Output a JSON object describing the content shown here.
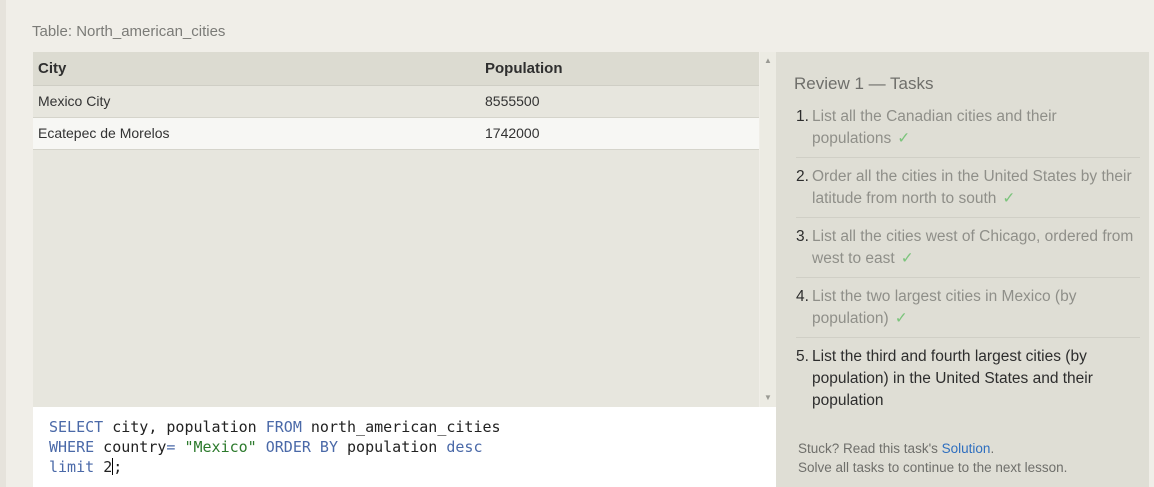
{
  "table": {
    "caption": "Table: North_american_cities",
    "columns": [
      "City",
      "Population"
    ],
    "rows": [
      {
        "city": "Mexico City",
        "population": "8555500"
      },
      {
        "city": "Ecatepec de Morelos",
        "population": "1742000"
      }
    ]
  },
  "editor": {
    "line1": {
      "kw1": "SELECT",
      "t1": " city, population ",
      "kw2": "FROM",
      "t2": " north_american_cities"
    },
    "line2": {
      "kw1": "WHERE",
      "t1": " country",
      "op": "=",
      "t2": " ",
      "str": "\"Mexico\"",
      "t3": " ",
      "kw2": "ORDER BY",
      "t4": " population ",
      "kw3": "desc"
    },
    "line3": {
      "kw1": "limit",
      "t1": " ",
      "num": "2",
      "t2": ";"
    }
  },
  "review": {
    "title": "Review 1 — Tasks",
    "check": "✓",
    "tasks": [
      {
        "num": "1.",
        "text": "List all the Canadian cities and their populations",
        "done": true
      },
      {
        "num": "2.",
        "text": "Order all the cities in the United States by their latitude from north to south",
        "done": true
      },
      {
        "num": "3.",
        "text": "List all the cities west of Chicago, ordered from west to east",
        "done": true
      },
      {
        "num": "4.",
        "text": "List the two largest cities in Mexico (by population)",
        "done": true
      },
      {
        "num": "5.",
        "text": "List the third and fourth largest cities (by population) in the United States and their population",
        "done": false
      }
    ],
    "footer": {
      "stuck_prefix": "Stuck? Read this task's ",
      "solution_link": "Solution",
      "stuck_suffix": ".",
      "line2": "Solve all tasks to continue to the next lesson."
    }
  },
  "scrollbar": {
    "up_icon": "▲",
    "down_icon": "▼"
  }
}
